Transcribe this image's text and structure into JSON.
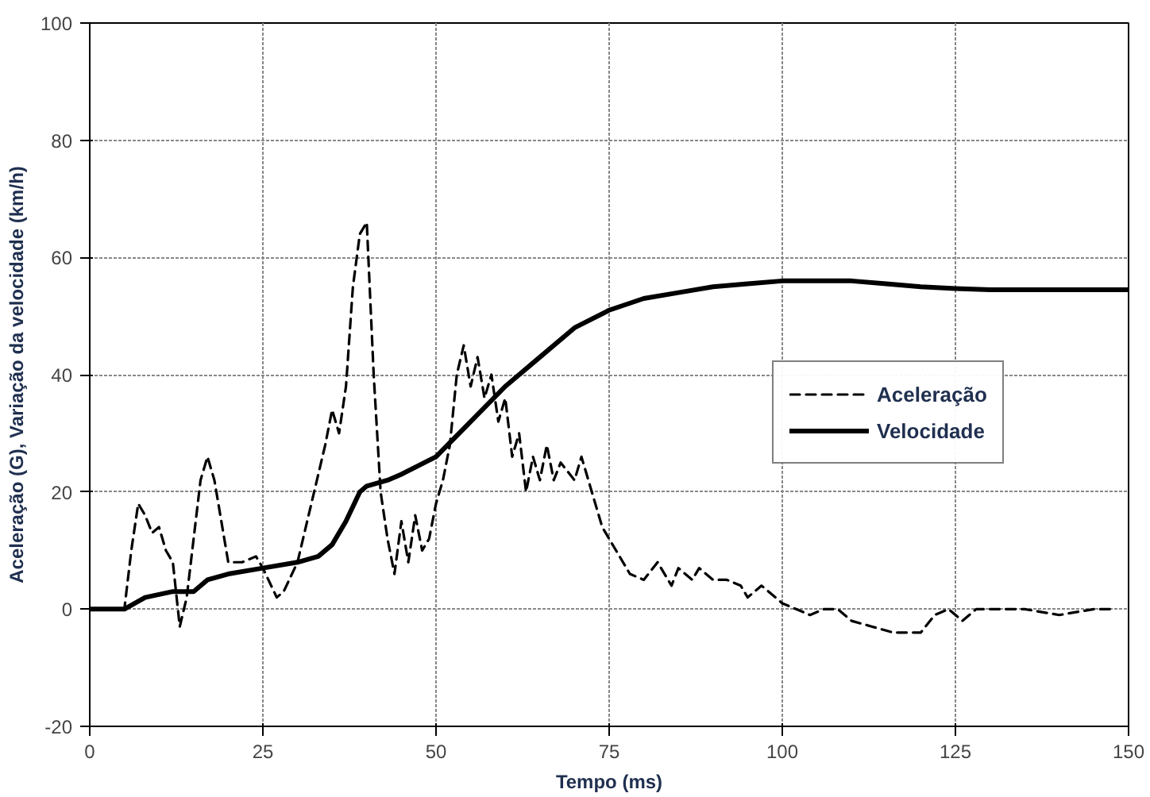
{
  "chart_data": {
    "type": "line",
    "xlabel": "Tempo (ms)",
    "ylabel": "Aceleração (G), Variação da velocidade (km/h)",
    "xlim": [
      0,
      150
    ],
    "xticks": [
      0,
      25,
      50,
      75,
      100,
      125,
      150
    ],
    "ylim": [
      -20,
      100
    ],
    "yticks": [
      -20,
      0,
      20,
      40,
      60,
      80,
      100
    ],
    "grid": true,
    "legend": "right",
    "marker": "none",
    "series": [
      {
        "name": "Aceleração",
        "color": "#000000",
        "line_style": "dashed",
        "x": [
          0,
          5,
          6,
          7,
          8,
          9,
          10,
          11,
          12,
          13,
          14,
          15,
          16,
          17,
          18,
          19,
          20,
          22,
          24,
          25,
          27,
          28,
          30,
          32,
          34,
          35,
          36,
          37,
          38,
          39,
          40,
          41,
          42,
          43,
          44,
          45,
          46,
          47,
          48,
          49,
          50,
          51,
          52,
          53,
          54,
          55,
          56,
          57,
          58,
          59,
          60,
          61,
          62,
          63,
          64,
          65,
          66,
          67,
          68,
          70,
          71,
          72,
          74,
          76,
          78,
          80,
          82,
          84,
          85,
          87,
          88,
          90,
          92,
          94,
          95,
          97,
          100,
          102,
          104,
          106,
          108,
          110,
          113,
          116,
          118,
          120,
          122,
          124,
          126,
          128,
          130,
          135,
          140,
          145,
          148
        ],
        "values": [
          0,
          0,
          10,
          18,
          16,
          13,
          14,
          10,
          8,
          -3,
          2,
          12,
          22,
          26,
          22,
          15,
          8,
          8,
          9,
          7,
          2,
          3,
          8,
          18,
          28,
          34,
          30,
          38,
          55,
          64,
          66,
          40,
          20,
          12,
          6,
          15,
          8,
          16,
          10,
          12,
          18,
          22,
          28,
          40,
          45,
          38,
          43,
          36,
          40,
          32,
          36,
          26,
          30,
          20,
          26,
          22,
          28,
          22,
          25,
          22,
          26,
          22,
          14,
          10,
          6,
          5,
          8,
          4,
          7,
          5,
          7,
          5,
          5,
          4,
          2,
          4,
          1,
          0,
          -1,
          0,
          0,
          -2,
          -3,
          -4,
          -4,
          -4,
          -1,
          0,
          -2,
          0,
          0,
          0,
          -1,
          0,
          0
        ]
      },
      {
        "name": "Velocidade",
        "color": "#000000",
        "line_style": "solid",
        "x": [
          0,
          5,
          8,
          10,
          12,
          15,
          17,
          20,
          25,
          30,
          33,
          35,
          37,
          39,
          40,
          43,
          45,
          50,
          55,
          60,
          65,
          70,
          75,
          80,
          85,
          90,
          95,
          100,
          105,
          110,
          115,
          120,
          125,
          130,
          140,
          150
        ],
        "values": [
          0,
          0,
          2,
          2.5,
          3,
          3,
          5,
          6,
          7,
          8,
          9,
          11,
          15,
          20,
          21,
          22,
          23,
          26,
          32,
          38,
          43,
          48,
          51,
          53,
          54,
          55,
          55.5,
          56,
          56,
          56,
          55.5,
          55,
          54.7,
          54.5,
          54.5,
          54.5
        ]
      }
    ]
  }
}
